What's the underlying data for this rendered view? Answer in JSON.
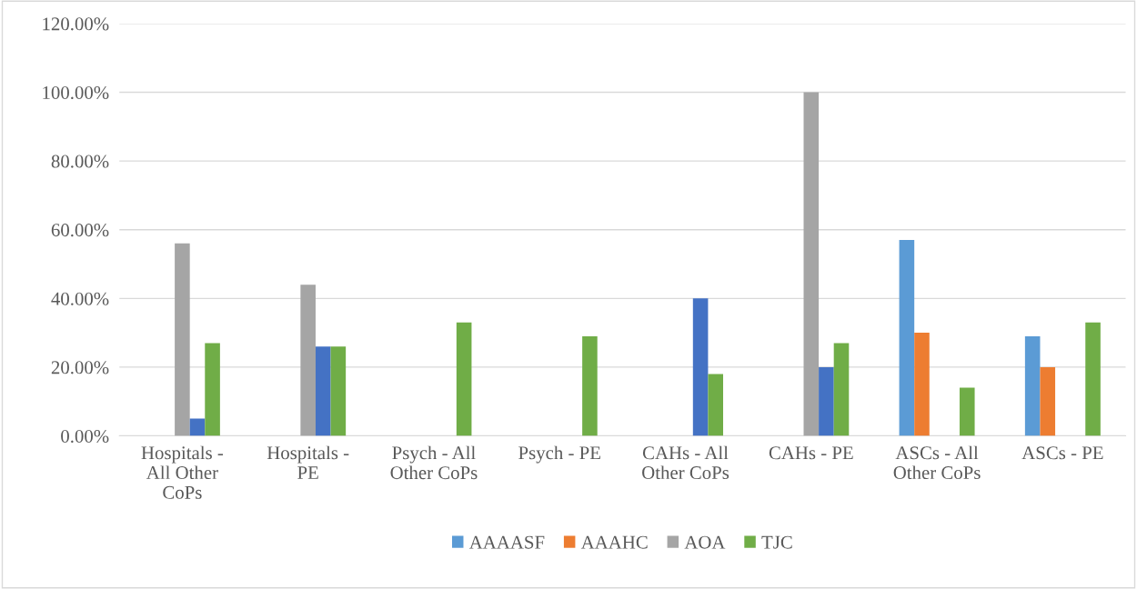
{
  "chart_data": {
    "type": "bar",
    "categories": [
      "Hospitals - All Other CoPs",
      "Hospitals - PE",
      "Psych - All Other CoPs",
      "Psych - PE",
      "CAHs - All Other CoPs",
      "CAHs - PE",
      "ASCs - All Other CoPs",
      "ASCs - PE"
    ],
    "series": [
      {
        "name": "AAAASF",
        "color": "#5b9bd5",
        "values": [
          null,
          null,
          null,
          null,
          null,
          null,
          57,
          29
        ]
      },
      {
        "name": "AAAHC",
        "color": "#ed7d31",
        "values": [
          null,
          null,
          null,
          null,
          null,
          null,
          30,
          20
        ]
      },
      {
        "name": "AOA",
        "color": "#a5a5a5",
        "values": [
          56,
          44,
          null,
          null,
          null,
          100,
          null,
          null
        ]
      },
      {
        "color": "#4472c4",
        "values": [
          5,
          26,
          null,
          null,
          40,
          20,
          null,
          null
        ]
      },
      {
        "name": "TJC",
        "color": "#70ad47",
        "values": [
          27,
          26,
          33,
          29,
          18,
          27,
          14,
          33
        ]
      }
    ],
    "ylim": [
      0,
      120
    ],
    "yticks": [
      {
        "value": 0,
        "label": "0.00%"
      },
      {
        "value": 20,
        "label": "20.00%"
      },
      {
        "value": 40,
        "label": "40.00%"
      },
      {
        "value": 60,
        "label": "60.00%"
      },
      {
        "value": 80,
        "label": "80.00%"
      },
      {
        "value": 100,
        "label": "100.00%"
      },
      {
        "value": 120,
        "label": "120.00%"
      }
    ],
    "grid": "y",
    "legend": "bottom"
  }
}
